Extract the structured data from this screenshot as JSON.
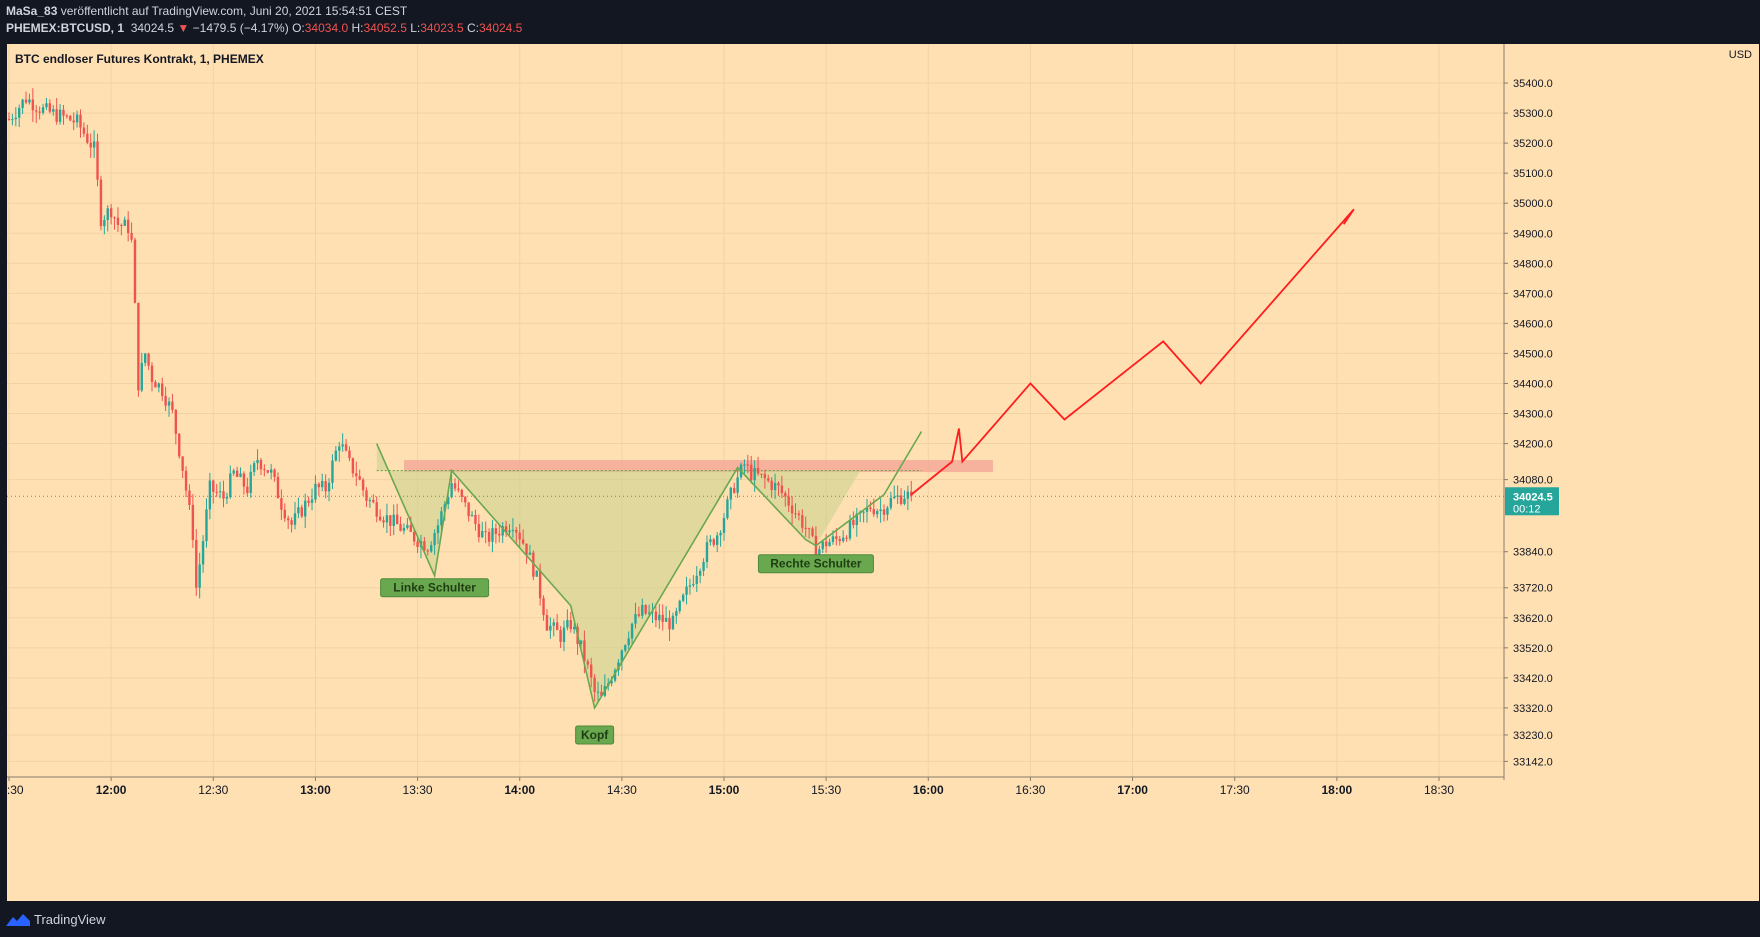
{
  "header": {
    "author": "MaSa_83",
    "published": "veröffentlicht auf TradingView.com, Juni 20, 2021 15:54:51 CEST",
    "symbol": "PHEMEX:BTCUSD, 1",
    "last": "34024.5",
    "change_arrow": "▼",
    "change": "−1479.5 (−4.17%)",
    "o_label": "O:",
    "o_value": "34034.0",
    "h_label": "H:",
    "h_value": "34052.5",
    "l_label": "L:",
    "l_value": "34023.5",
    "c_label": "C:",
    "c_value": "34024.5"
  },
  "footer": {
    "brand": "TradingView"
  },
  "colors": {
    "background": "#ffe0b3",
    "up": "#26a69a",
    "down": "#ef5350",
    "pattern_line": "#6aa84f",
    "forecast": "#ff1e1e",
    "resistance": "#f5a998"
  },
  "chart_data": {
    "type": "candlestick",
    "title": "BTC endloser Futures Kontrakt, 1, PHEMEX",
    "currency_label": "USD",
    "y_ticks": [
      35400,
      35300,
      35200,
      35100,
      35000,
      34900,
      34800,
      34700,
      34600,
      34500,
      34400,
      34300,
      34200,
      34080,
      33840,
      33720,
      33620,
      33520,
      33420,
      33320,
      33230,
      33142
    ],
    "y_tick_labels": [
      "35400.0",
      "35300.0",
      "35200.0",
      "35100.0",
      "35000.0",
      "34900.0",
      "34800.0",
      "34700.0",
      "34600.0",
      "34500.0",
      "34400.0",
      "34300.0",
      "34200.0",
      "34080.0",
      "33840.0",
      "33720.0",
      "33620.0",
      "33520.0",
      "33420.0",
      "33320.0",
      "33230.0",
      "33142.0"
    ],
    "x_ticks": [
      "11:30",
      "12:00",
      "12:30",
      "13:00",
      "13:30",
      "14:00",
      "14:30",
      "15:00",
      "15:30",
      "16:00",
      "16:30",
      "17:00",
      "17:30",
      "18:00",
      "18:30"
    ],
    "bold_x_ticks": [
      "12:00",
      "13:00",
      "14:00",
      "15:00",
      "16:00",
      "17:00",
      "18:00"
    ],
    "last_price": "34024.5",
    "countdown": "00:12",
    "close_path": [
      [
        "11:30",
        35280
      ],
      [
        "11:35",
        35350
      ],
      [
        "11:40",
        35310
      ],
      [
        "11:45",
        35290
      ],
      [
        "11:50",
        35270
      ],
      [
        "11:55",
        35180
      ],
      [
        "11:57",
        34950
      ],
      [
        "12:00",
        34980
      ],
      [
        "12:02",
        34930
      ],
      [
        "12:05",
        34920
      ],
      [
        "12:06",
        34870
      ],
      [
        "12:07",
        34650
      ],
      [
        "12:08",
        34400
      ],
      [
        "12:10",
        34500
      ],
      [
        "12:12",
        34420
      ],
      [
        "12:15",
        34380
      ],
      [
        "12:18",
        34300
      ],
      [
        "12:21",
        34120
      ],
      [
        "12:24",
        33900
      ],
      [
        "12:25",
        33720
      ],
      [
        "12:27",
        33880
      ],
      [
        "12:29",
        34050
      ],
      [
        "12:33",
        34020
      ],
      [
        "12:36",
        34100
      ],
      [
        "12:40",
        34050
      ],
      [
        "12:43",
        34150
      ],
      [
        "12:47",
        34100
      ],
      [
        "12:50",
        34000
      ],
      [
        "12:53",
        33930
      ],
      [
        "12:56",
        33980
      ],
      [
        "13:00",
        34050
      ],
      [
        "13:03",
        34050
      ],
      [
        "13:07",
        34210
      ],
      [
        "13:10",
        34130
      ],
      [
        "13:12",
        34100
      ],
      [
        "13:15",
        34020
      ],
      [
        "13:20",
        33960
      ],
      [
        "13:25",
        33920
      ],
      [
        "13:30",
        33880
      ],
      [
        "13:33",
        33860
      ],
      [
        "13:36",
        33930
      ],
      [
        "13:40",
        34070
      ],
      [
        "13:43",
        34010
      ],
      [
        "13:46",
        33950
      ],
      [
        "13:50",
        33880
      ],
      [
        "13:55",
        33920
      ],
      [
        "13:58",
        33940
      ],
      [
        "14:02",
        33850
      ],
      [
        "14:05",
        33750
      ],
      [
        "14:08",
        33600
      ],
      [
        "14:12",
        33560
      ],
      [
        "14:15",
        33600
      ],
      [
        "14:18",
        33520
      ],
      [
        "14:20",
        33450
      ],
      [
        "14:22",
        33370
      ],
      [
        "14:24",
        33350
      ],
      [
        "14:27",
        33430
      ],
      [
        "14:30",
        33520
      ],
      [
        "14:33",
        33600
      ],
      [
        "14:36",
        33640
      ],
      [
        "14:40",
        33620
      ],
      [
        "14:45",
        33600
      ],
      [
        "14:48",
        33680
      ],
      [
        "14:52",
        33780
      ],
      [
        "14:55",
        33850
      ],
      [
        "14:58",
        33900
      ],
      [
        "15:00",
        33960
      ],
      [
        "15:03",
        34060
      ],
      [
        "15:06",
        34130
      ],
      [
        "15:08",
        34100
      ],
      [
        "15:12",
        34080
      ],
      [
        "15:16",
        34050
      ],
      [
        "15:20",
        33990
      ],
      [
        "15:24",
        33920
      ],
      [
        "15:27",
        33840
      ],
      [
        "15:30",
        33870
      ],
      [
        "15:33",
        33880
      ],
      [
        "15:36",
        33910
      ],
      [
        "15:40",
        33950
      ],
      [
        "15:43",
        33990
      ],
      [
        "15:46",
        33980
      ],
      [
        "15:49",
        34010
      ],
      [
        "15:53",
        34030
      ],
      [
        "15:55",
        34024.5
      ]
    ],
    "pattern_labels": {
      "left_shoulder": "Linke Schulter",
      "head": "Kopf",
      "right_shoulder": "Rechte Schulter"
    },
    "pattern_points": {
      "left_shoulder": [
        [
          "13:18",
          34200
        ],
        [
          "13:35",
          33760
        ],
        [
          "13:40",
          34110
        ],
        [
          "14:15",
          33660
        ],
        [
          "14:22",
          33320
        ],
        [
          "15:04",
          34120
        ],
        [
          "15:24",
          33880
        ],
        [
          "15:27",
          33860
        ],
        [
          "15:47",
          34030
        ],
        [
          "15:58",
          34240
        ]
      ],
      "neckline": [
        [
          "13:18",
          34110
        ],
        [
          "15:58",
          34110
        ]
      ]
    },
    "resistance_zone": {
      "from": "13:26",
      "to": "16:19",
      "low": 34105,
      "high": 34145
    },
    "forecast_path": [
      [
        "15:55",
        34030
      ],
      [
        "16:07",
        34140
      ],
      [
        "16:09",
        34250
      ],
      [
        "16:10",
        34140
      ],
      [
        "16:30",
        34400
      ],
      [
        "16:40",
        34280
      ],
      [
        "17:09",
        34540
      ],
      [
        "17:20",
        34400
      ],
      [
        "18:05",
        34980
      ],
      [
        "18:02",
        34930
      ]
    ]
  }
}
